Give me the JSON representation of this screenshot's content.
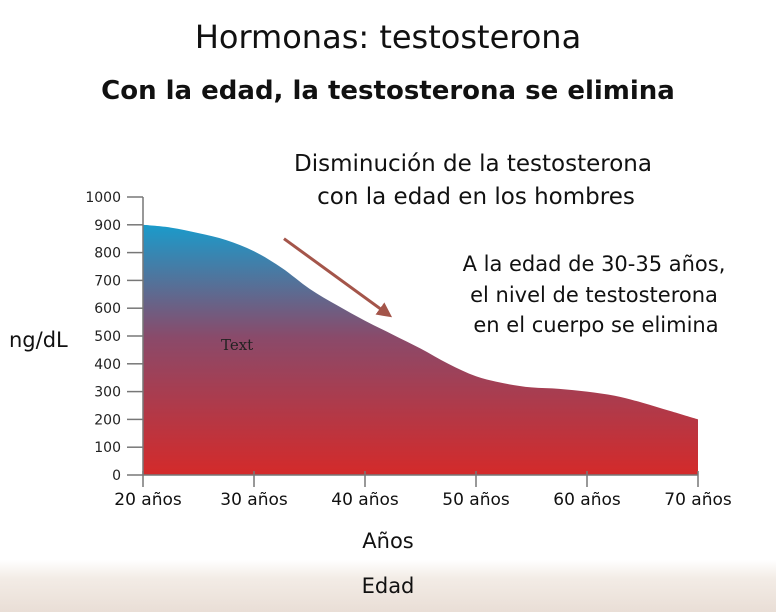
{
  "header": {
    "title": "Hormonas: testosterona",
    "subtitle": "Con la edad, la testosterona se elimina"
  },
  "chart_data": {
    "type": "area",
    "title": "Disminución de la testosterona con la edad en los hombres",
    "title_lines": [
      "Disminución de la testosterona",
      "con la edad en los hombres"
    ],
    "ylabel": "ng/dL",
    "xlabel": "Años",
    "ylim": [
      0,
      1000
    ],
    "yticks": [
      0,
      100,
      200,
      300,
      400,
      500,
      600,
      700,
      800,
      900,
      1000
    ],
    "xlim": [
      20,
      70
    ],
    "xticks": [
      20,
      30,
      40,
      50,
      60,
      70
    ],
    "xtick_labels": [
      "20 años",
      "30 años",
      "40 años",
      "50 años",
      "60 años",
      "70 años"
    ],
    "x": [
      20,
      22.5,
      25,
      27.5,
      30,
      32.5,
      35,
      37.5,
      40,
      42.5,
      45,
      47.5,
      50,
      52.5,
      55,
      57.5,
      60,
      62.5,
      65,
      67.5,
      70
    ],
    "values": [
      900,
      890,
      870,
      845,
      805,
      745,
      670,
      610,
      555,
      505,
      455,
      400,
      355,
      330,
      315,
      310,
      300,
      285,
      260,
      230,
      200
    ],
    "annotation_lines": [
      "A la edad de 30-35 años,",
      "el nivel de testosterona",
      "en el cuerpo se elimina"
    ],
    "placeholder_text": "Text",
    "arrow": {
      "from": [
        32.7,
        850
      ],
      "to": [
        42,
        580
      ]
    },
    "colors": {
      "top": "#1a9bcb",
      "middle": "#8a4a6a",
      "bottom": "#d42a2a",
      "arrow": "#a4554a",
      "axis": "#777777"
    }
  },
  "footer": {
    "label": "Edad"
  }
}
